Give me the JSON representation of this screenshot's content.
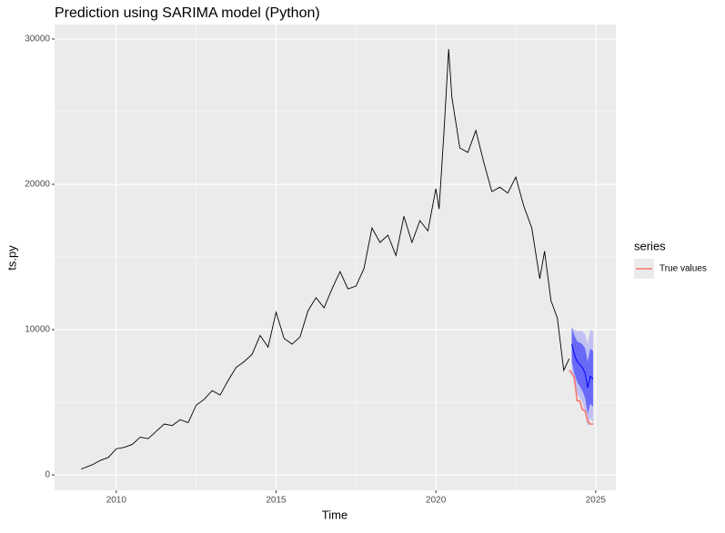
{
  "chart_data": {
    "type": "line",
    "title": "Prediction using SARIMA model (Python)",
    "x_label": "Time",
    "y_label": "ts.py",
    "xlim": [
      2008.07,
      2025.63
    ],
    "ylim": [
      -1060,
      31000
    ],
    "xticks": [
      2010,
      2015,
      2020,
      2025
    ],
    "yticks": [
      0,
      10000,
      20000,
      30000
    ],
    "grid": true,
    "legend_title": "series",
    "legend_position": "right",
    "series": [
      {
        "color": "#000000",
        "x": [
          2008.9,
          2009.25,
          2009.5,
          2009.75,
          2010.0,
          2010.25,
          2010.5,
          2010.75,
          2011.0,
          2011.25,
          2011.5,
          2011.75,
          2012.0,
          2012.25,
          2012.5,
          2012.75,
          2013.0,
          2013.25,
          2013.5,
          2013.75,
          2014.0,
          2014.25,
          2014.5,
          2014.75,
          2015.0,
          2015.25,
          2015.5,
          2015.75,
          2016.0,
          2016.25,
          2016.5,
          2016.75,
          2017.0,
          2017.25,
          2017.5,
          2017.75,
          2018.0,
          2018.25,
          2018.5,
          2018.75,
          2019.0,
          2019.25,
          2019.5,
          2019.75,
          2020.0,
          2020.1,
          2020.25,
          2020.4,
          2020.5,
          2020.75,
          2021.0,
          2021.25,
          2021.5,
          2021.75,
          2022.0,
          2022.25,
          2022.5,
          2022.75,
          2023.0,
          2023.25,
          2023.4,
          2023.6,
          2023.8,
          2024.0,
          2024.17
        ],
        "values": [
          400,
          700,
          1000,
          1200,
          1800,
          1900,
          2100,
          2600,
          2500,
          3000,
          3500,
          3400,
          3800,
          3600,
          4800,
          5200,
          5800,
          5500,
          6500,
          7400,
          7800,
          8300,
          9600,
          8800,
          11200,
          9400,
          9000,
          9500,
          11300,
          12200,
          11500,
          12800,
          14000,
          12800,
          13000,
          14200,
          17000,
          16000,
          16500,
          15100,
          17800,
          16000,
          17500,
          16800,
          19700,
          18300,
          23500,
          29300,
          26000,
          22500,
          22200,
          23700,
          21500,
          19500,
          19800,
          19400,
          20500,
          18500,
          17000,
          13500,
          15400,
          12000,
          10800,
          7200,
          8000
        ]
      },
      {
        "name": "True values",
        "color": "#F8766D",
        "x": [
          2024.17,
          2024.25,
          2024.33,
          2024.42,
          2024.5,
          2024.58,
          2024.67,
          2024.75,
          2024.83,
          2024.92
        ],
        "values": [
          7200,
          7000,
          6700,
          5100,
          5100,
          4500,
          4400,
          3700,
          3500,
          3500
        ]
      }
    ],
    "forecast": {
      "color": "#0000ff",
      "x": [
        2024.25,
        2024.33,
        2024.42,
        2024.5,
        2024.58,
        2024.67,
        2024.75,
        2024.83,
        2024.92
      ],
      "mean": [
        9000,
        8300,
        7800,
        7600,
        7400,
        7000,
        6000,
        6800,
        6600
      ],
      "lo80": [
        7800,
        7000,
        6400,
        6100,
        5800,
        5300,
        4200,
        4900,
        4700
      ],
      "hi80": [
        10200,
        9600,
        9200,
        9100,
        9000,
        8700,
        7800,
        8700,
        8500
      ],
      "lo95": [
        7100,
        6300,
        5600,
        5300,
        5000,
        4400,
        3300,
        3900,
        3600
      ],
      "hi95": [
        10100,
        10000,
        9900,
        9900,
        9900,
        9700,
        9000,
        10000,
        9900
      ]
    }
  }
}
